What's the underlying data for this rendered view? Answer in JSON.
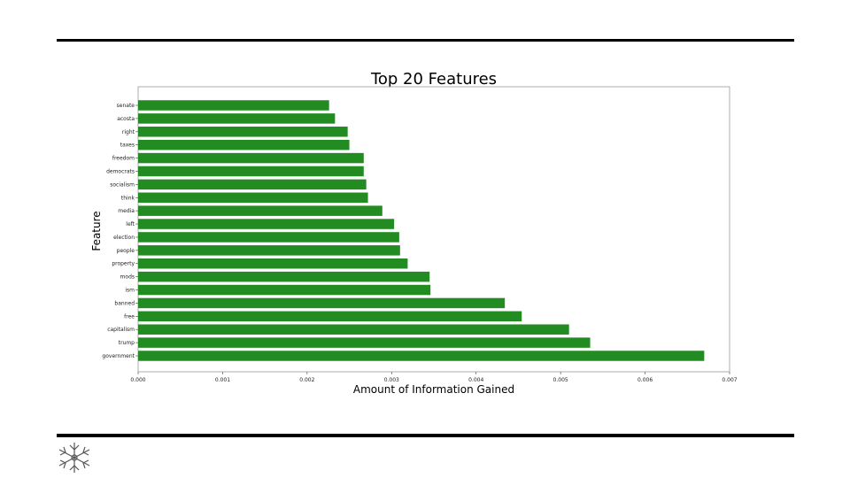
{
  "chart_data": {
    "type": "bar",
    "orientation": "horizontal",
    "title": "Top 20 Features",
    "xlabel": "Amount of Information Gained",
    "ylabel": "Feature",
    "xlim": [
      0,
      0.007
    ],
    "xticks": [
      "0.000",
      "0.001",
      "0.002",
      "0.003",
      "0.004",
      "0.005",
      "0.006",
      "0.007"
    ],
    "bar_color": "#228b22",
    "grid": false,
    "categories": [
      "senate",
      "acosta",
      "right",
      "taxes",
      "freedom",
      "democrats",
      "socialism",
      "think",
      "media",
      "left",
      "election",
      "people",
      "property",
      "mods",
      "ism",
      "banned",
      "free",
      "capitalism",
      "trump",
      "government"
    ],
    "values": [
      0.00226,
      0.00233,
      0.00248,
      0.0025,
      0.00267,
      0.00267,
      0.0027,
      0.00272,
      0.00289,
      0.00303,
      0.00309,
      0.0031,
      0.00319,
      0.00345,
      0.00346,
      0.00434,
      0.00454,
      0.0051,
      0.00535,
      0.0067
    ]
  },
  "logo": {
    "icon": "snowflake-logo-icon"
  }
}
